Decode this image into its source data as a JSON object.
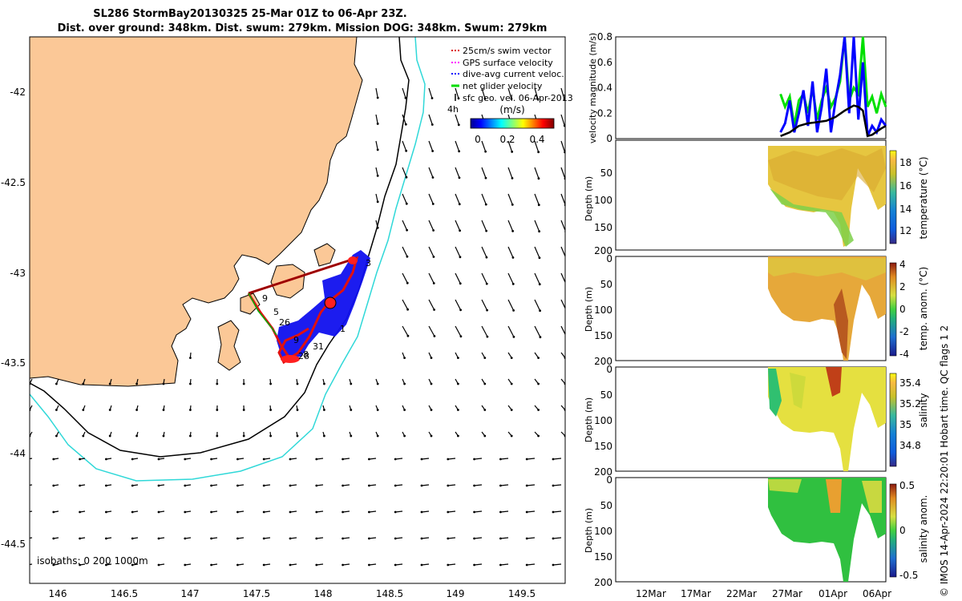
{
  "title_line1": "SL286 StormBay20130325 25-Mar 01Z to 06-Apr 23Z.",
  "title_line2": "Dist. over ground: 348km. Dist. swum: 279km. Mission DOG: 348km. Swum: 279km",
  "credit": "© IMOS 14-Apr-2024 22:20:01 Hobart time. QC flags 1  2",
  "map": {
    "lon_ticks": [
      "146",
      "146.5",
      "147",
      "147.5",
      "148",
      "148.5",
      "149",
      "149.5"
    ],
    "lat_ticks": [
      "-42",
      "-42.5",
      "-43",
      "-43.5",
      "-44",
      "-44.5"
    ],
    "isobaths_label": "isobaths: 0   200  1000m",
    "legend": [
      {
        "label": "25cm/s swim vector",
        "color": "#dd0000"
      },
      {
        "label": "GPS surface velocity",
        "color": "#ff00ff"
      },
      {
        "label": "dive-avg current veloc.",
        "color": "#0000ff"
      },
      {
        "label": "net glider velocity",
        "color": "#00dd00"
      },
      {
        "label": "sfc geo. vel. 06-Apr-2013",
        "color": "#000000"
      }
    ],
    "hour_marker": "4h",
    "colorbar_title": "(m/s)",
    "colorbar_ticks": [
      "0",
      "0.2",
      "0.4"
    ],
    "track_labels": [
      "9",
      "3",
      "1",
      "5",
      "26",
      "9",
      "31",
      "8",
      "28"
    ],
    "colors": {
      "land": "#fbc897",
      "isobath_200": "#000000",
      "isobath_1000": "#2fd8d8"
    }
  },
  "chart_data": [
    {
      "type": "line",
      "title": "velocity magnitude",
      "ylabel": "velocity magnitude (m/s)",
      "ylim": [
        0,
        0.8
      ],
      "yticks": [
        "0",
        "0.2",
        "0.4",
        "0.6",
        "0.8"
      ],
      "series": [
        {
          "name": "net glider velocity",
          "color": "#00e000",
          "x": [
            26.0,
            26.5,
            27.0,
            27.5,
            28.0,
            28.5,
            29.0,
            29.5,
            30.0,
            30.5,
            31.0,
            31.5,
            32.0,
            32.5,
            33.0,
            33.5,
            34.0,
            34.5,
            35.0,
            35.5,
            36.0,
            36.5,
            37.0,
            37.5
          ],
          "values": [
            0.35,
            0.25,
            0.33,
            0.1,
            0.3,
            0.35,
            0.2,
            0.4,
            0.15,
            0.3,
            0.4,
            0.25,
            0.32,
            0.45,
            0.8,
            0.3,
            0.4,
            0.35,
            0.8,
            0.25,
            0.33,
            0.2,
            0.35,
            0.25
          ]
        },
        {
          "name": "dive-avg current veloc.",
          "color": "#0000ff",
          "x": [
            26.0,
            26.5,
            27.0,
            27.5,
            28.0,
            28.5,
            29.0,
            29.5,
            30.0,
            30.5,
            31.0,
            31.5,
            32.0,
            32.5,
            33.0,
            33.5,
            34.0,
            34.5,
            35.0,
            35.5,
            36.0,
            36.5,
            37.0,
            37.5
          ],
          "values": [
            0.05,
            0.12,
            0.3,
            0.05,
            0.2,
            0.38,
            0.1,
            0.45,
            0.05,
            0.25,
            0.55,
            0.05,
            0.3,
            0.5,
            0.8,
            0.2,
            0.8,
            0.15,
            0.6,
            0.02,
            0.1,
            0.05,
            0.15,
            0.1
          ]
        },
        {
          "name": "sfc geo. vel.",
          "color": "#000000",
          "x": [
            26.0,
            27.0,
            28.0,
            29.0,
            30.0,
            31.0,
            32.0,
            33.0,
            33.5,
            34.0,
            34.5,
            35.0,
            35.5,
            36.0,
            37.0,
            37.5
          ],
          "values": [
            0.02,
            0.05,
            0.1,
            0.12,
            0.13,
            0.14,
            0.17,
            0.22,
            0.24,
            0.26,
            0.25,
            0.22,
            0.02,
            0.03,
            0.08,
            0.1
          ]
        }
      ]
    },
    {
      "type": "heatmap",
      "title": "temperature",
      "ylabel": "Depth (m)",
      "clabel": "temperature (°C)",
      "ylim": [
        0,
        200
      ],
      "yticks": [
        "50",
        "100",
        "150",
        "200"
      ],
      "clim": [
        11,
        19
      ],
      "cticks": [
        "12",
        "14",
        "16",
        "18"
      ]
    },
    {
      "type": "heatmap",
      "title": "temperature anomaly",
      "ylabel": "Depth (m)",
      "clabel": "temp. anom. (°C)",
      "ylim": [
        0,
        200
      ],
      "yticks": [
        "0",
        "50",
        "100",
        "150",
        "200"
      ],
      "clim": [
        -4,
        4
      ],
      "cticks": [
        "4",
        "2",
        "0",
        "-2",
        "-4"
      ]
    },
    {
      "type": "heatmap",
      "title": "salinity",
      "ylabel": "Depth (m)",
      "clabel": "salinity",
      "ylim": [
        0,
        200
      ],
      "yticks": [
        "0",
        "50",
        "100",
        "150",
        "200"
      ],
      "clim": [
        34.6,
        35.5
      ],
      "cticks": [
        "35.4",
        "35.2",
        "35",
        "34.8"
      ]
    },
    {
      "type": "heatmap",
      "title": "salinity anomaly",
      "ylabel": "Depth (m)",
      "clabel": "salinity anom.",
      "ylim": [
        0,
        200
      ],
      "yticks": [
        "0",
        "50",
        "100",
        "150",
        "200"
      ],
      "clim": [
        -0.5,
        0.5
      ],
      "cticks": [
        "0.5",
        "0",
        "-0.5"
      ]
    }
  ],
  "time_axis": {
    "ticks": [
      "12Mar",
      "17Mar",
      "22Mar",
      "27Mar",
      "01Apr",
      "06Apr"
    ]
  }
}
